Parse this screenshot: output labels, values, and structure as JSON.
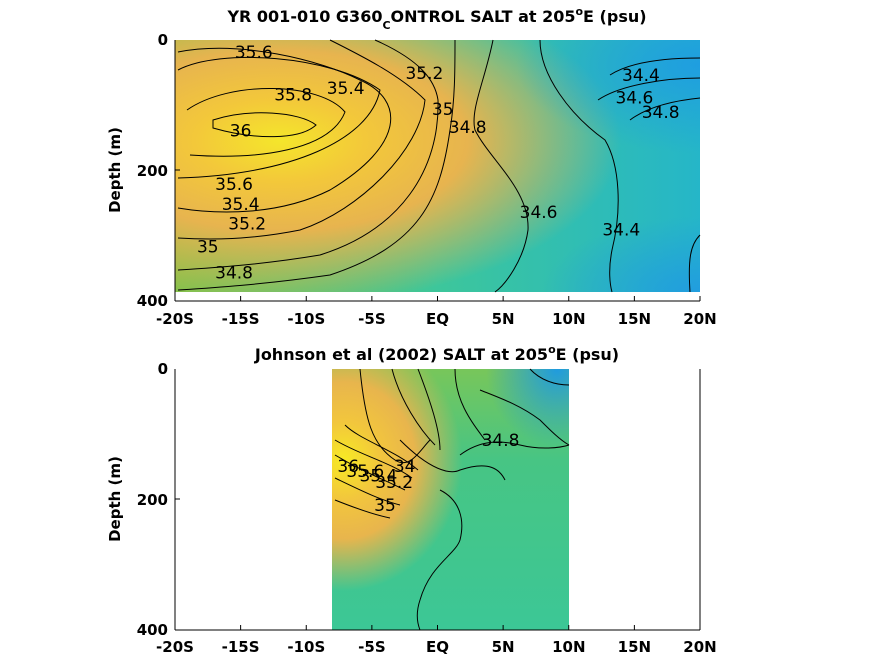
{
  "chart_data": [
    {
      "type": "contour",
      "title": {
        "prefix": "YR 001-010 G360",
        "subscript": "C",
        "middle": "ONTROL SALT at 205",
        "superscript": "o",
        "suffix": "E (psu)"
      },
      "ylabel": "Depth (m)",
      "x_ticks": [
        "-20S",
        "-15S",
        "-10S",
        "-5S",
        "EQ",
        "5N",
        "10N",
        "15N",
        "20N"
      ],
      "y_ticks": [
        "0",
        "200",
        "400"
      ],
      "xlim": [
        -20,
        20
      ],
      "ylim": [
        400,
        0
      ],
      "data_xrange": [
        -20,
        20
      ],
      "data_yrange": [
        0,
        385
      ],
      "contour_labels": [
        {
          "text": "35.6",
          "x": -14,
          "y": 20
        },
        {
          "text": "35.4",
          "x": -7,
          "y": 75
        },
        {
          "text": "35.2",
          "x": -1,
          "y": 52
        },
        {
          "text": "35.8",
          "x": -11,
          "y": 85
        },
        {
          "text": "36",
          "x": -15,
          "y": 140
        },
        {
          "text": "35",
          "x": 0.4,
          "y": 107
        },
        {
          "text": "34.8",
          "x": 2.3,
          "y": 135
        },
        {
          "text": "35.6",
          "x": -15.5,
          "y": 222
        },
        {
          "text": "35.4",
          "x": -15,
          "y": 253
        },
        {
          "text": "35.2",
          "x": -14.5,
          "y": 283
        },
        {
          "text": "35",
          "x": -17.5,
          "y": 318
        },
        {
          "text": "34.8",
          "x": -15.5,
          "y": 358
        },
        {
          "text": "34.6",
          "x": 7.7,
          "y": 265
        },
        {
          "text": "34.4",
          "x": 14,
          "y": 292
        },
        {
          "text": "34.4",
          "x": 15.5,
          "y": 55
        },
        {
          "text": "34.6",
          "x": 15,
          "y": 90
        },
        {
          "text": "34.8",
          "x": 17,
          "y": 112
        }
      ]
    },
    {
      "type": "contour",
      "title": {
        "prefix": "Johnson et al (2002) SALT at 205",
        "superscript": "o",
        "suffix": "E (psu)"
      },
      "ylabel": "Depth (m)",
      "x_ticks": [
        "-20S",
        "-15S",
        "-10S",
        "-5S",
        "EQ",
        "5N",
        "10N",
        "15N",
        "20N"
      ],
      "y_ticks": [
        "0",
        "200",
        "400"
      ],
      "xlim": [
        -20,
        20
      ],
      "ylim": [
        400,
        0
      ],
      "data_xrange": [
        -8,
        10
      ],
      "data_yrange": [
        0,
        400
      ],
      "contour_labels": [
        {
          "text": "34.8",
          "x": 4.8,
          "y": 110
        },
        {
          "text": "34",
          "x": -2.5,
          "y": 150
        },
        {
          "text": "35.2",
          "x": -3.3,
          "y": 175
        },
        {
          "text": "35.4",
          "x": -4.5,
          "y": 165
        },
        {
          "text": "35.6",
          "x": -5.5,
          "y": 158
        },
        {
          "text": "35",
          "x": -4,
          "y": 210
        },
        {
          "text": "36",
          "x": -6.8,
          "y": 150
        }
      ]
    }
  ]
}
